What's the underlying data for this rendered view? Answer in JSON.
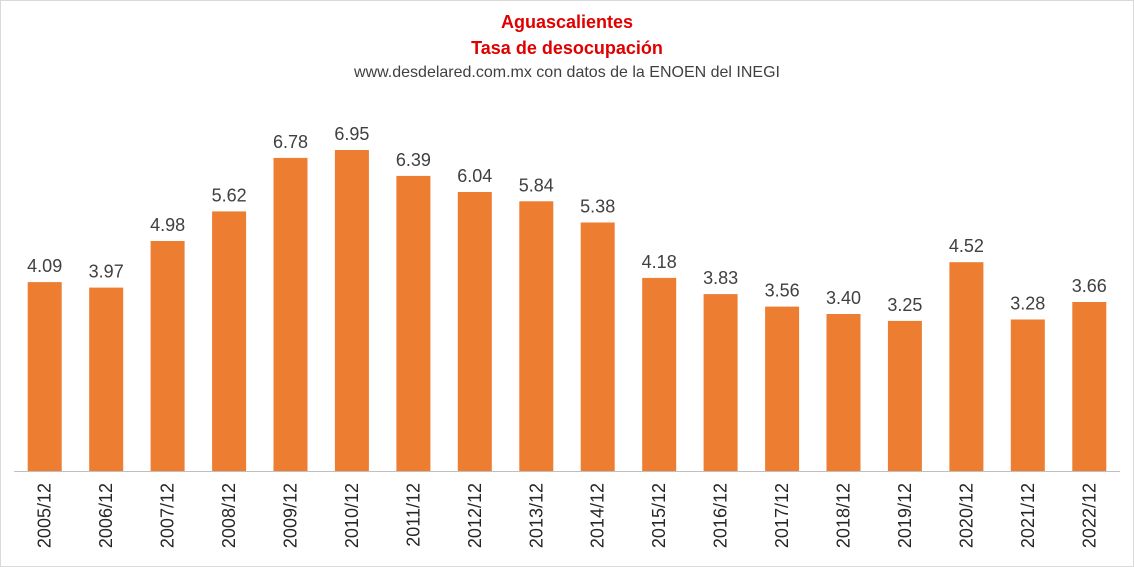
{
  "chart_data": {
    "type": "bar",
    "title": "Aguascalientes",
    "subtitle": "Tasa  de desocupación",
    "source": "www.desdelared.com.mx con datos de la ENOEN del INEGI",
    "categories": [
      "2005/12",
      "2006/12",
      "2007/12",
      "2008/12",
      "2009/12",
      "2010/12",
      "2011/12",
      "2012/12",
      "2013/12",
      "2014/12",
      "2015/12",
      "2016/12",
      "2017/12",
      "2018/12",
      "2019/12",
      "2020/12",
      "2021/12",
      "2022/12"
    ],
    "values": [
      4.09,
      3.97,
      4.98,
      5.62,
      6.78,
      6.95,
      6.39,
      6.04,
      5.84,
      5.38,
      4.18,
      3.83,
      3.56,
      3.4,
      3.25,
      4.52,
      3.28,
      3.66
    ],
    "value_labels": [
      "4.09",
      "3.97",
      "4.98",
      "5.62",
      "6.78",
      "6.95",
      "6.39",
      "6.04",
      "5.84",
      "5.38",
      "4.18",
      "3.83",
      "3.56",
      "3.40",
      "3.25",
      "4.52",
      "3.28",
      "3.66"
    ],
    "ylim": [
      0,
      7
    ],
    "bar_color": "#ed7d31",
    "axis_color": "#bfbfbf",
    "grid": false,
    "legend": "none",
    "xlabel": "",
    "ylabel": ""
  }
}
